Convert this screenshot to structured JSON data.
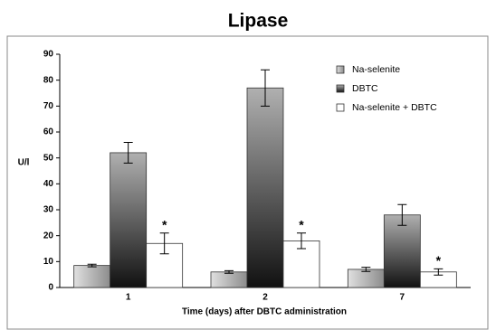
{
  "chart_data": {
    "type": "bar",
    "title": "Lipase",
    "x_label": "Time (days) after DBTC administration",
    "y_label": "U/l",
    "categories": [
      "1",
      "2",
      "7"
    ],
    "series": [
      {
        "name": "Na-selenite",
        "color": "#8c8c8c",
        "values": [
          8.5,
          6,
          7
        ],
        "errors": [
          0.5,
          0.5,
          0.8
        ]
      },
      {
        "name": "DBTC",
        "color": "#111111",
        "values": [
          52,
          77,
          28
        ],
        "errors": [
          4,
          7,
          4
        ]
      },
      {
        "name": "Na-selenite + DBTC",
        "color": "#ffffff",
        "values": [
          17,
          18,
          6
        ],
        "errors": [
          4,
          3,
          1.2
        ],
        "point_labels": [
          "*",
          "*",
          "*"
        ]
      }
    ],
    "ylim": [
      0,
      90
    ],
    "yticks": [
      0,
      10,
      20,
      30,
      40,
      50,
      60,
      70,
      80,
      90
    ],
    "legend": "top-right"
  }
}
